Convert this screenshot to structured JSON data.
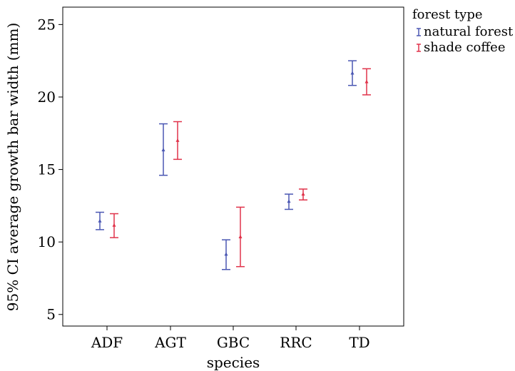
{
  "chart_data": {
    "type": "errorbar",
    "xlabel": "species",
    "ylabel": "95% CI average growth bar width (mm)",
    "categories": [
      "ADF",
      "AGT",
      "GBC",
      "RRC",
      "TD"
    ],
    "ylim": [
      4.2,
      26.2
    ],
    "yticks": [
      5,
      10,
      15,
      20,
      25
    ],
    "grid": false,
    "legend": {
      "title": "forest type",
      "placement": "right"
    },
    "series": [
      {
        "name": "natural forest",
        "color": "#4a57b3",
        "mean": [
          11.45,
          16.35,
          9.15,
          12.8,
          21.65
        ],
        "lower": [
          10.85,
          14.6,
          8.1,
          12.25,
          20.8
        ],
        "upper": [
          12.05,
          18.15,
          10.15,
          13.3,
          22.5
        ]
      },
      {
        "name": "shade coffee",
        "color": "#e0334a",
        "mean": [
          11.15,
          17.0,
          10.35,
          13.3,
          21.05
        ],
        "lower": [
          10.3,
          15.7,
          8.3,
          12.9,
          20.15
        ],
        "upper": [
          11.95,
          18.3,
          12.4,
          13.65,
          21.95
        ]
      }
    ]
  }
}
